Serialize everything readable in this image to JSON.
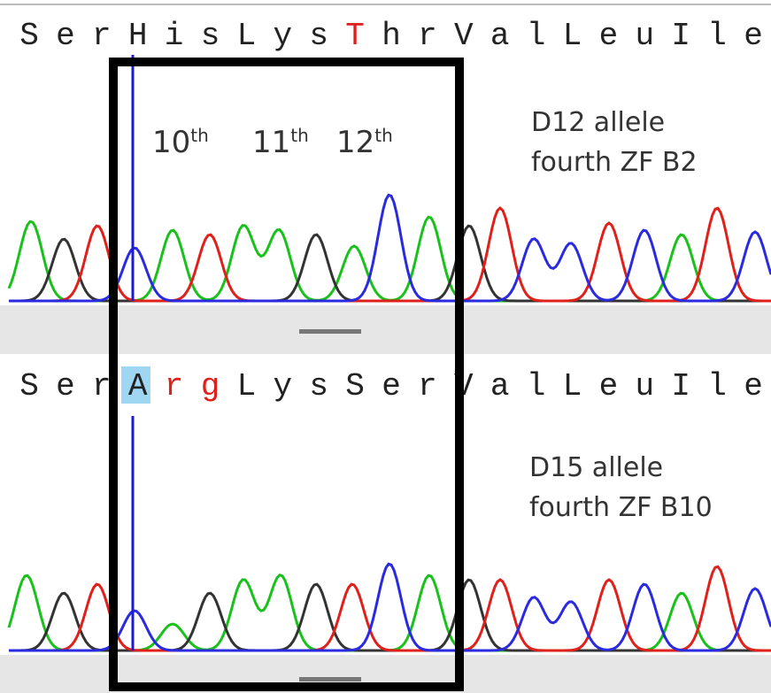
{
  "top_panel": {
    "residues": [
      "S",
      "e",
      "r",
      "H",
      "i",
      "s",
      "L",
      "y",
      "s",
      "T",
      "h",
      "r",
      "V",
      "a",
      "l",
      "L",
      "e",
      "u",
      "I",
      "l",
      "e"
    ],
    "ordinals": [
      {
        "number": "10",
        "suffix": "th"
      },
      {
        "number": "11",
        "suffix": "th"
      },
      {
        "number": "12",
        "suffix": "th"
      }
    ],
    "label_lines": [
      "D12 allele",
      "fourth ZF B2"
    ]
  },
  "bottom_panel": {
    "residues": [
      "S",
      "e",
      "r",
      "A",
      "r",
      "g",
      "L",
      "y",
      "s",
      "S",
      "e",
      "r",
      "V",
      "a",
      "l",
      "L",
      "e",
      "u",
      "I",
      "l",
      "e"
    ],
    "label_lines": [
      "D15 allele",
      "fourth ZF B10"
    ]
  }
}
